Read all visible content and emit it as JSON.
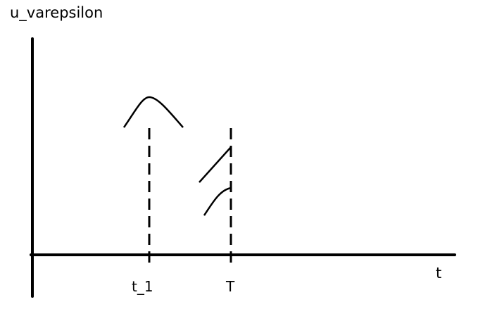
{
  "diagram": {
    "y_axis_label": "u_varepsilon",
    "x_axis_label": "t",
    "ticks": [
      {
        "id": "t1",
        "label": "t_1"
      },
      {
        "id": "T",
        "label": "T"
      }
    ],
    "colors": {
      "ink": "#000000",
      "background": "#ffffff"
    }
  }
}
